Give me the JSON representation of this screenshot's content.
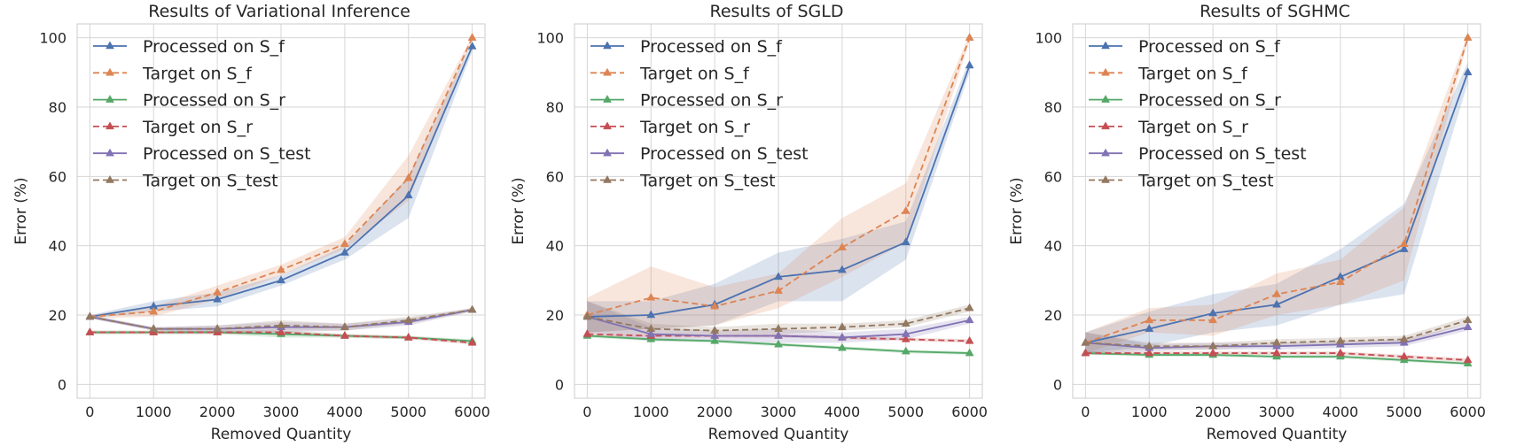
{
  "chart_data": [
    {
      "type": "line",
      "title": "Results of Variational Inference",
      "xlabel": "Removed Quantity",
      "ylabel": "Error (%)",
      "x": [
        0,
        1000,
        2000,
        3000,
        4000,
        5000,
        6000
      ],
      "xticks": [
        0,
        1000,
        2000,
        3000,
        4000,
        5000,
        6000
      ],
      "yticks": [
        0,
        20,
        40,
        60,
        80,
        100
      ],
      "xlim": [
        -200,
        6200
      ],
      "ylim": [
        -4,
        104
      ],
      "grid": true,
      "legend_position": "top-left",
      "series": [
        {
          "name": "Processed on S_f",
          "color": "#4c72b0",
          "dashed": false,
          "values": [
            19.5,
            22.5,
            24.5,
            30,
            38,
            54.5,
            97.5
          ],
          "band": [
            [
              19,
              20
            ],
            [
              21,
              24
            ],
            [
              22.5,
              26.5
            ],
            [
              28.5,
              31.5
            ],
            [
              36,
              40
            ],
            [
              48,
              60
            ],
            [
              96,
              99
            ]
          ]
        },
        {
          "name": "Target on S_f",
          "color": "#dd8452",
          "dashed": true,
          "values": [
            19.5,
            21,
            26.5,
            33,
            40.5,
            59.5,
            100
          ],
          "band": [
            [
              19,
              20
            ],
            [
              19.5,
              22.5
            ],
            [
              24.5,
              28.5
            ],
            [
              31.5,
              34.5
            ],
            [
              39,
              42.5
            ],
            [
              53,
              66
            ],
            [
              99.5,
              100.5
            ]
          ]
        },
        {
          "name": "Processed on S_r",
          "color": "#55a868",
          "dashed": false,
          "values": [
            15,
            15,
            15,
            14.5,
            14,
            13.5,
            12.5
          ],
          "band": [
            [
              14.5,
              15.5
            ],
            [
              14.5,
              15.5
            ],
            [
              14.5,
              15.5
            ],
            [
              13.5,
              15.5
            ],
            [
              13.5,
              14.5
            ],
            [
              13,
              14
            ],
            [
              12,
              13
            ]
          ]
        },
        {
          "name": "Target on S_r",
          "color": "#c44e52",
          "dashed": true,
          "values": [
            15,
            15,
            15,
            15,
            14,
            13.5,
            12
          ],
          "band": [
            [
              14.5,
              15.5
            ],
            [
              14.5,
              15.5
            ],
            [
              14.5,
              15.5
            ],
            [
              14.5,
              15.5
            ],
            [
              13.5,
              14.5
            ],
            [
              13,
              14
            ],
            [
              11.5,
              12.5
            ]
          ]
        },
        {
          "name": "Processed on S_test",
          "color": "#8172b3",
          "dashed": false,
          "values": [
            19.5,
            16,
            16,
            16.5,
            16.5,
            18,
            21.5
          ],
          "band": [
            [
              19,
              20
            ],
            [
              15.5,
              16.5
            ],
            [
              15,
              17
            ],
            [
              15,
              18
            ],
            [
              15.5,
              17.5
            ],
            [
              17,
              19
            ],
            [
              21,
              22
            ]
          ]
        },
        {
          "name": "Target on S_test",
          "color": "#937860",
          "dashed": true,
          "values": [
            19.5,
            16,
            16,
            17,
            16.5,
            18.5,
            21.5
          ],
          "band": [
            [
              19,
              20
            ],
            [
              15.5,
              16.5
            ],
            [
              15,
              17
            ],
            [
              15.5,
              18.5
            ],
            [
              15.5,
              17.5
            ],
            [
              17.5,
              19.5
            ],
            [
              21,
              22
            ]
          ]
        }
      ]
    },
    {
      "type": "line",
      "title": "Results of SGLD",
      "xlabel": "Removed Quantity",
      "ylabel": "Error (%)",
      "x": [
        0,
        1000,
        2000,
        3000,
        4000,
        5000,
        6000
      ],
      "xticks": [
        0,
        1000,
        2000,
        3000,
        4000,
        5000,
        6000
      ],
      "yticks": [
        0,
        20,
        40,
        60,
        80,
        100
      ],
      "xlim": [
        -200,
        6200
      ],
      "ylim": [
        -4,
        104
      ],
      "grid": true,
      "legend_position": "top-left",
      "series": [
        {
          "name": "Processed on S_f",
          "color": "#4c72b0",
          "dashed": false,
          "values": [
            19.5,
            20,
            23,
            31,
            33,
            41,
            92
          ],
          "band": [
            [
              15,
              24
            ],
            [
              16,
              24
            ],
            [
              17,
              29
            ],
            [
              24,
              38
            ],
            [
              24,
              42
            ],
            [
              36,
              47
            ],
            [
              90,
              94
            ]
          ]
        },
        {
          "name": "Target on S_f",
          "color": "#dd8452",
          "dashed": true,
          "values": [
            20,
            25,
            22.5,
            27,
            39.5,
            50,
            100
          ],
          "band": [
            [
              15,
              25
            ],
            [
              16,
              34
            ],
            [
              17,
              28
            ],
            [
              22,
              32
            ],
            [
              31,
              48
            ],
            [
              41,
              58
            ],
            [
              99,
              101
            ]
          ]
        },
        {
          "name": "Processed on S_r",
          "color": "#55a868",
          "dashed": false,
          "values": [
            14,
            13,
            12.5,
            11.5,
            10.5,
            9.5,
            9
          ],
          "band": [
            [
              13.5,
              14.5
            ],
            [
              12.5,
              13.5
            ],
            [
              12,
              13
            ],
            [
              11,
              12
            ],
            [
              10,
              11
            ],
            [
              9,
              10
            ],
            [
              8.5,
              9.5
            ]
          ]
        },
        {
          "name": "Target on S_r",
          "color": "#c44e52",
          "dashed": true,
          "values": [
            14.5,
            14,
            14,
            14,
            13.5,
            13,
            12.5
          ],
          "band": [
            [
              14,
              15
            ],
            [
              13.5,
              14.5
            ],
            [
              13.5,
              14.5
            ],
            [
              13.5,
              14.5
            ],
            [
              13,
              14
            ],
            [
              12.5,
              13.5
            ],
            [
              12,
              13
            ]
          ]
        },
        {
          "name": "Processed on S_test",
          "color": "#8172b3",
          "dashed": false,
          "values": [
            19.5,
            14.5,
            14,
            14,
            13.5,
            14.5,
            18.5
          ],
          "band": [
            [
              15,
              24
            ],
            [
              12.5,
              16.5
            ],
            [
              12.5,
              15.5
            ],
            [
              12,
              16
            ],
            [
              12,
              15
            ],
            [
              13,
              16
            ],
            [
              17.5,
              19.5
            ]
          ]
        },
        {
          "name": "Target on S_test",
          "color": "#937860",
          "dashed": true,
          "values": [
            19.5,
            16,
            15.5,
            16,
            16.5,
            17.5,
            22
          ],
          "band": [
            [
              15,
              24
            ],
            [
              14.5,
              17.5
            ],
            [
              14.5,
              16.5
            ],
            [
              14.5,
              17.5
            ],
            [
              15.5,
              17.5
            ],
            [
              16.5,
              18.5
            ],
            [
              21,
              23
            ]
          ]
        }
      ]
    },
    {
      "type": "line",
      "title": "Results of SGHMC",
      "xlabel": "Removed Quantity",
      "ylabel": "Error (%)",
      "x": [
        0,
        1000,
        2000,
        3000,
        4000,
        5000,
        6000
      ],
      "xticks": [
        0,
        1000,
        2000,
        3000,
        4000,
        5000,
        6000
      ],
      "yticks": [
        0,
        20,
        40,
        60,
        80,
        100
      ],
      "xlim": [
        -200,
        6200
      ],
      "ylim": [
        -4,
        104
      ],
      "grid": true,
      "legend_position": "top-left",
      "series": [
        {
          "name": "Processed on S_f",
          "color": "#4c72b0",
          "dashed": false,
          "values": [
            12,
            16,
            20.5,
            23,
            31,
            39,
            90
          ],
          "band": [
            [
              9,
              15
            ],
            [
              11,
              21
            ],
            [
              15,
              26
            ],
            [
              17,
              29
            ],
            [
              23,
              39
            ],
            [
              26,
              52
            ],
            [
              87,
              93
            ]
          ]
        },
        {
          "name": "Target on S_f",
          "color": "#dd8452",
          "dashed": true,
          "values": [
            12,
            18.5,
            18.5,
            26,
            29.5,
            40.5,
            100
          ],
          "band": [
            [
              9,
              15
            ],
            [
              15,
              22
            ],
            [
              14,
              23
            ],
            [
              20,
              32
            ],
            [
              23,
              36
            ],
            [
              30,
              51
            ],
            [
              99,
              101
            ]
          ]
        },
        {
          "name": "Processed on S_r",
          "color": "#55a868",
          "dashed": false,
          "values": [
            9,
            8.5,
            8.5,
            8,
            8,
            7,
            6
          ],
          "band": [
            [
              8.5,
              9.5
            ],
            [
              8,
              9
            ],
            [
              8,
              9
            ],
            [
              7.5,
              8.5
            ],
            [
              7.5,
              8.5
            ],
            [
              6.5,
              7.5
            ],
            [
              5.5,
              6.5
            ]
          ]
        },
        {
          "name": "Target on S_r",
          "color": "#c44e52",
          "dashed": true,
          "values": [
            9,
            9,
            9,
            9,
            9,
            8,
            7
          ],
          "band": [
            [
              8.5,
              9.5
            ],
            [
              8.5,
              9.5
            ],
            [
              8.5,
              9.5
            ],
            [
              8.5,
              9.5
            ],
            [
              8.5,
              9.5
            ],
            [
              7.5,
              8.5
            ],
            [
              6.5,
              7.5
            ]
          ]
        },
        {
          "name": "Processed on S_test",
          "color": "#8172b3",
          "dashed": false,
          "values": [
            12,
            10.5,
            11,
            11,
            11.5,
            12,
            16.5
          ],
          "band": [
            [
              9,
              15
            ],
            [
              9.5,
              11.5
            ],
            [
              10,
              12
            ],
            [
              10,
              12
            ],
            [
              10.5,
              12.5
            ],
            [
              11,
              13
            ],
            [
              15.5,
              17.5
            ]
          ]
        },
        {
          "name": "Target on S_test",
          "color": "#937860",
          "dashed": true,
          "values": [
            12,
            11,
            11,
            12,
            12.5,
            13,
            18.5
          ],
          "band": [
            [
              9,
              15
            ],
            [
              10,
              12
            ],
            [
              10,
              12
            ],
            [
              11,
              13
            ],
            [
              11.5,
              13.5
            ],
            [
              12,
              14
            ],
            [
              17.5,
              19.5
            ]
          ]
        }
      ]
    }
  ]
}
